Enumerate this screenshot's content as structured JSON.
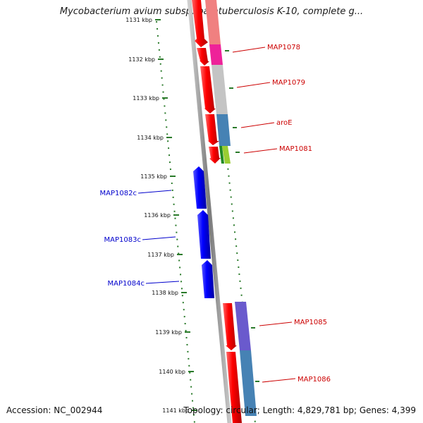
{
  "title": "Mycobacterium avium subsp. paratuberculosis K-10, complete g...",
  "footer": {
    "accession": "Accession: NC_002944",
    "topology": "Topology: circular; Length: 4,829,781 bp; Genes: 4,399"
  },
  "ticks": [
    "1131 kbp",
    "1132 kbp",
    "1133 kbp",
    "1134 kbp",
    "1135 kbp",
    "1136 kbp",
    "1137 kbp",
    "1138 kbp",
    "1139 kbp",
    "1140 kbp",
    "1141 kbp"
  ],
  "genes_forward": [
    {
      "label": "MAP1078"
    },
    {
      "label": "MAP1079"
    },
    {
      "label": "aroE"
    },
    {
      "label": "MAP1081"
    },
    {
      "label": "MAP1085"
    },
    {
      "label": "MAP1086"
    }
  ],
  "genes_reverse": [
    {
      "label": "MAP1082c"
    },
    {
      "label": "MAP1083c"
    },
    {
      "label": "MAP1084c"
    }
  ],
  "colors": {
    "forward_gene": "#ff0000",
    "reverse_gene": "#0000ff",
    "backbone": "#888888",
    "tick_dots": "#2a7a2a",
    "forward_label": "#cc0000",
    "reverse_label": "#0000cc"
  }
}
